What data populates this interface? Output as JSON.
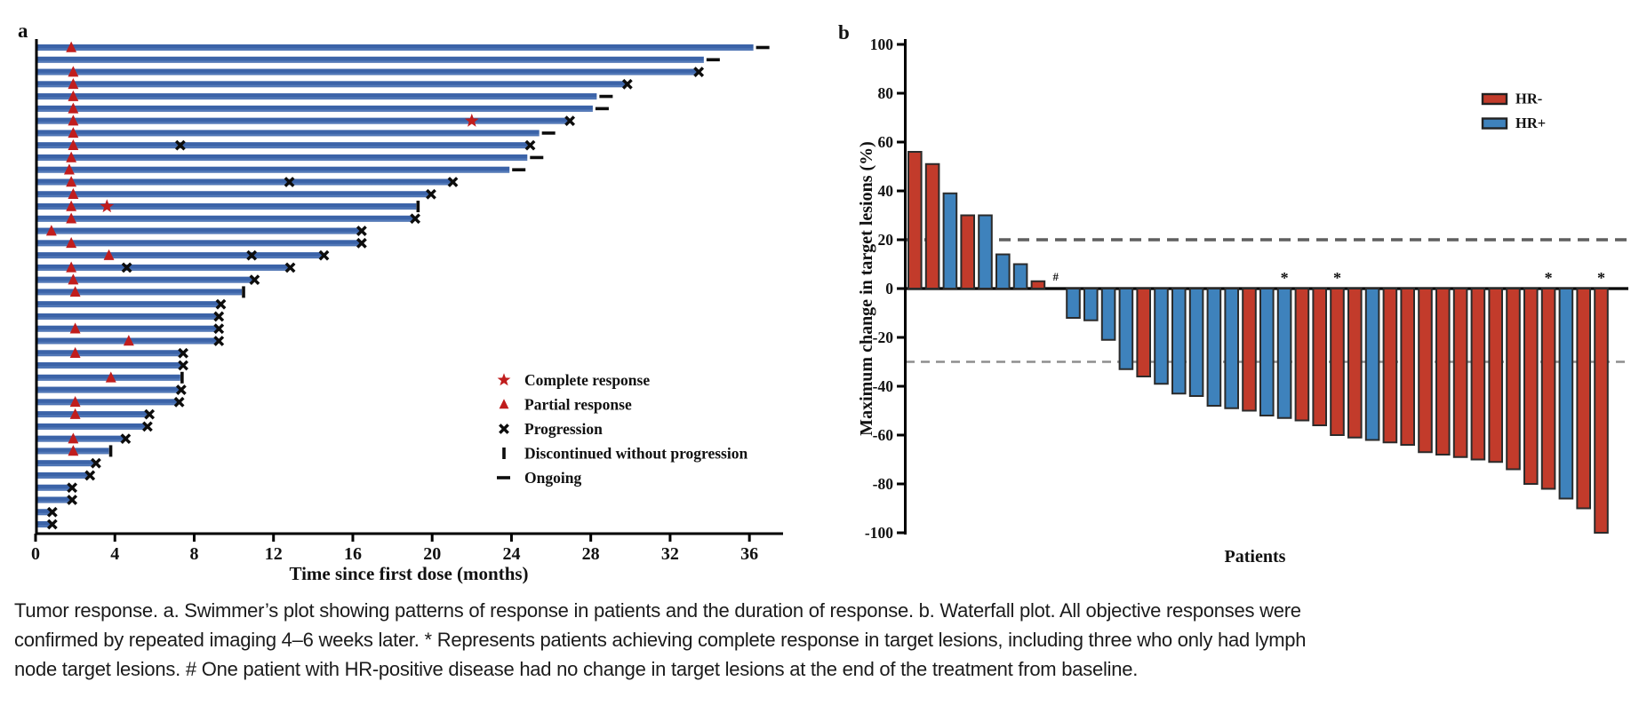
{
  "caption": {
    "lines": [
      "Tumor response. a. Swimmer’s plot showing patterns of response in patients and the duration of response. b. Waterfall plot. All objective responses were",
      "confirmed by repeated imaging 4–6 weeks later. * Represents patients achieving complete response in target lesions, including three who only had lymph",
      "node target lesions. # One patient with HR-positive disease had no change in target lesions at the end of the treatment from baseline."
    ]
  },
  "chart_data": [
    {
      "id": "swimmer",
      "type": "bar",
      "orientation": "horizontal",
      "panel_label": "a",
      "xlabel": "Time since first dose (months)",
      "xlim": [
        0,
        38
      ],
      "x_ticks": [
        0,
        4,
        8,
        12,
        16,
        20,
        24,
        28,
        32,
        36
      ],
      "grid": false,
      "bar_color": "#3b63a8",
      "bar_color_light": "#5a80bd",
      "response_marker_color": "#c01d1d",
      "event_marker_color": "#0d0d0d",
      "legend_position": "inside-lower-right",
      "legend": [
        {
          "symbol": "star",
          "label": "Complete response"
        },
        {
          "symbol": "triangle",
          "label": "Partial response"
        },
        {
          "symbol": "x",
          "label": "Progression"
        },
        {
          "symbol": "vbar",
          "label": "Discontinued without progression"
        },
        {
          "symbol": "dash",
          "label": "Ongoing"
        }
      ],
      "patients": [
        {
          "duration": 36.2,
          "partial_response_at": 1.8,
          "end": "ongoing"
        },
        {
          "duration": 33.7,
          "end": "ongoing"
        },
        {
          "duration": 33.4,
          "partial_response_at": 1.9,
          "end": "progression"
        },
        {
          "duration": 29.8,
          "partial_response_at": 1.9,
          "end": "progression"
        },
        {
          "duration": 28.3,
          "partial_response_at": 1.9,
          "end": "ongoing"
        },
        {
          "duration": 28.1,
          "partial_response_at": 1.9,
          "end": "ongoing"
        },
        {
          "duration": 26.9,
          "partial_response_at": 1.9,
          "complete_response_at": 22.0,
          "end": "progression"
        },
        {
          "duration": 25.4,
          "partial_response_at": 1.9,
          "end": "ongoing"
        },
        {
          "duration": 24.9,
          "partial_response_at": 1.9,
          "progression_at": [
            7.3
          ],
          "end": "progression"
        },
        {
          "duration": 24.8,
          "partial_response_at": 1.8,
          "end": "ongoing"
        },
        {
          "duration": 23.9,
          "partial_response_at": 1.7,
          "end": "ongoing"
        },
        {
          "duration": 21.0,
          "partial_response_at": 1.8,
          "progression_at": [
            12.8
          ],
          "end": "progression"
        },
        {
          "duration": 19.9,
          "partial_response_at": 1.9,
          "end": "progression"
        },
        {
          "duration": 19.2,
          "partial_response_at": 1.8,
          "complete_response_at": 3.6,
          "end": "discontinued"
        },
        {
          "duration": 19.1,
          "partial_response_at": 1.8,
          "end": "progression"
        },
        {
          "duration": 16.4,
          "partial_response_at": 0.8,
          "end": "progression"
        },
        {
          "duration": 16.4,
          "partial_response_at": 1.8,
          "end": "progression"
        },
        {
          "duration": 14.5,
          "partial_response_at": 3.7,
          "progression_at": [
            10.9
          ],
          "end": "progression"
        },
        {
          "duration": 12.8,
          "partial_response_at": 1.8,
          "progression_at": [
            4.6
          ],
          "end": "progression"
        },
        {
          "duration": 11.0,
          "partial_response_at": 1.9,
          "end": "progression"
        },
        {
          "duration": 10.4,
          "partial_response_at": 2.0,
          "end": "discontinued"
        },
        {
          "duration": 9.3,
          "end": "progression"
        },
        {
          "duration": 9.2,
          "end": "progression"
        },
        {
          "duration": 9.2,
          "partial_response_at": 2.0,
          "end": "progression"
        },
        {
          "duration": 9.2,
          "partial_response_at": 4.7,
          "end": "progression"
        },
        {
          "duration": 7.4,
          "partial_response_at": 2.0,
          "end": "progression"
        },
        {
          "duration": 7.4,
          "end": "progression"
        },
        {
          "duration": 7.3,
          "partial_response_at": 3.8,
          "end": "discontinued"
        },
        {
          "duration": 7.3,
          "end": "progression"
        },
        {
          "duration": 7.2,
          "partial_response_at": 2.0,
          "end": "progression"
        },
        {
          "duration": 5.7,
          "partial_response_at": 2.0,
          "end": "progression"
        },
        {
          "duration": 5.6,
          "end": "progression"
        },
        {
          "duration": 4.5,
          "partial_response_at": 1.9,
          "end": "progression"
        },
        {
          "duration": 3.7,
          "partial_response_at": 1.9,
          "end": "discontinued"
        },
        {
          "duration": 3.0,
          "end": "progression"
        },
        {
          "duration": 2.7,
          "end": "progression"
        },
        {
          "duration": 1.8,
          "end": "progression"
        },
        {
          "duration": 1.8,
          "end": "progression"
        },
        {
          "duration": 0.8,
          "end": "progression"
        },
        {
          "duration": 0.8,
          "end": "progression"
        }
      ]
    },
    {
      "id": "waterfall",
      "type": "bar",
      "panel_label": "b",
      "ylabel": "Maximum change in target lesions (%)",
      "xlabel": "Patients",
      "ylim": [
        -100,
        100
      ],
      "y_ticks": [
        100,
        80,
        60,
        40,
        20,
        0,
        -20,
        -40,
        -60,
        -80,
        -100
      ],
      "grid": false,
      "bar_outline_color": "#2b2b2b",
      "reference_lines": [
        {
          "value": 20,
          "color": "#5f5f5f",
          "width": 3.6,
          "dash": "13,8"
        },
        {
          "value": -30,
          "color": "#8e8e8e",
          "width": 2.6,
          "dash": "10,7"
        }
      ],
      "legend_position": "upper-right",
      "legend": [
        {
          "label": "HR-",
          "color": "#c23b2b"
        },
        {
          "label": "HR+",
          "color": "#3e82bc"
        }
      ],
      "values": [
        56,
        51,
        39,
        30,
        30,
        14,
        10,
        3,
        0,
        -12,
        -13,
        -21,
        -33,
        -36,
        -39,
        -43,
        -44,
        -48,
        -49,
        -50,
        -52,
        -53,
        -54,
        -56,
        -60,
        -61,
        -62,
        -63,
        -64,
        -67,
        -68,
        -69,
        -70,
        -71,
        -74,
        -80,
        -82,
        -86,
        -90,
        -100
      ],
      "groups": [
        "HR-",
        "HR-",
        "HR+",
        "HR-",
        "HR+",
        "HR+",
        "HR+",
        "HR-",
        "HR+",
        "HR+",
        "HR+",
        "HR+",
        "HR+",
        "HR-",
        "HR+",
        "HR+",
        "HR+",
        "HR+",
        "HR+",
        "HR-",
        "HR+",
        "HR+",
        "HR-",
        "HR-",
        "HR-",
        "HR-",
        "HR+",
        "HR-",
        "HR-",
        "HR-",
        "HR-",
        "HR-",
        "HR-",
        "HR-",
        "HR-",
        "HR-",
        "HR-",
        "HR+",
        "HR-",
        "HR-"
      ],
      "annotations": [
        {
          "index": 8,
          "text": "#"
        },
        {
          "index": 21,
          "text": "*"
        },
        {
          "index": 24,
          "text": "*"
        },
        {
          "index": 36,
          "text": "*"
        },
        {
          "index": 39,
          "text": "*"
        }
      ]
    }
  ]
}
